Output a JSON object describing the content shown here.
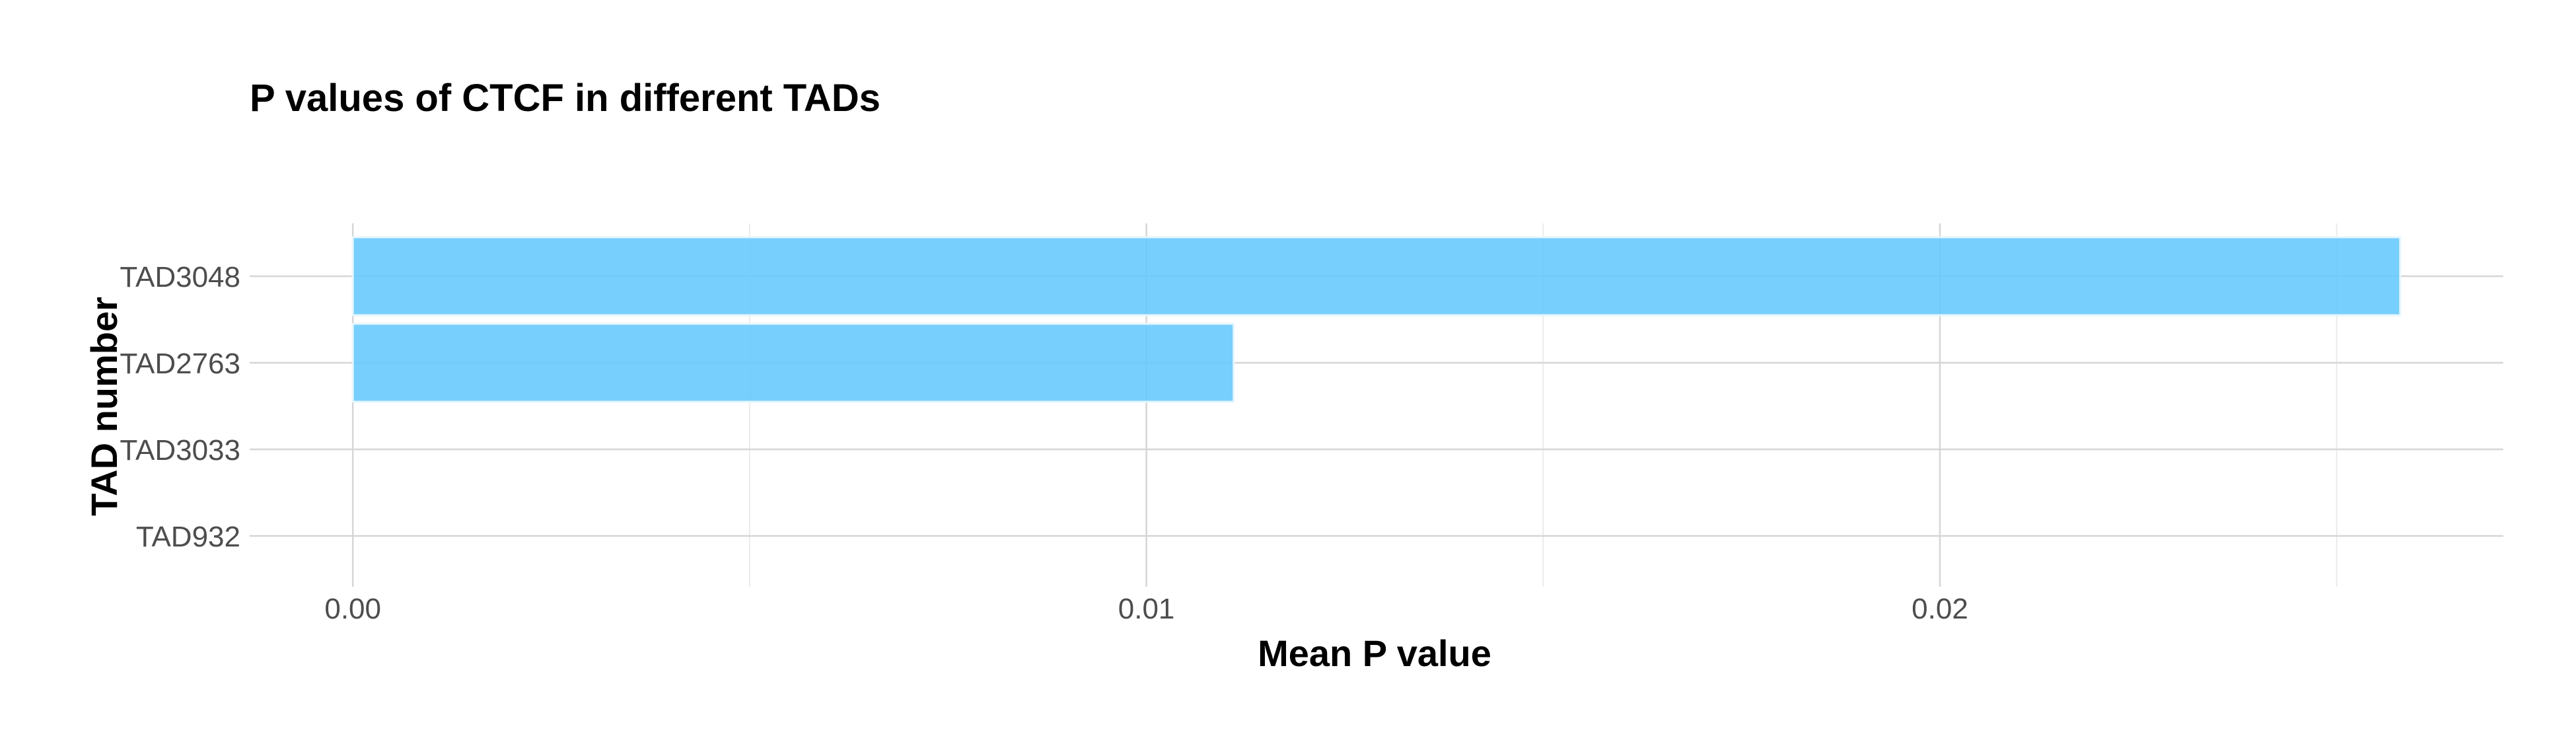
{
  "chart_data": {
    "type": "bar",
    "orientation": "horizontal",
    "title": "P values of CTCF in different TADs",
    "xlabel": "Mean P value",
    "ylabel": "TAD number",
    "categories": [
      "TAD3048",
      "TAD2763",
      "TAD3033",
      "TAD932"
    ],
    "values": [
      0.0258,
      0.0111,
      0,
      0
    ],
    "xlim": [
      -0.0013,
      0.0271
    ],
    "xticks": [
      0,
      0.01,
      0.02
    ],
    "xtick_labels": [
      "0.00",
      "0.01",
      "0.02"
    ],
    "grid": true,
    "legend": "none",
    "bar_color": "#64c8fd"
  }
}
